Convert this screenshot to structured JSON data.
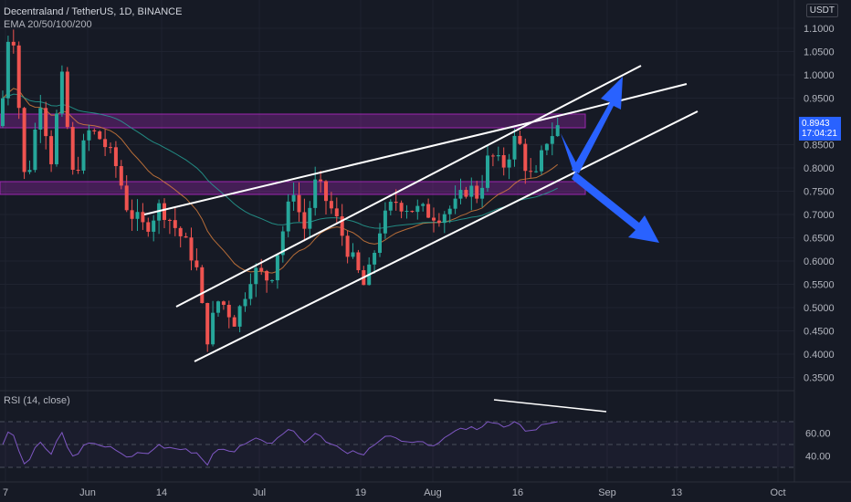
{
  "header": {
    "symbol_line": "Decentraland / TetherUS, 1D, BINANCE",
    "indicator_line": "EMA 20/50/100/200"
  },
  "currency_badge": "USDT",
  "current_price": {
    "value": "0.8943",
    "countdown": "17:04:21"
  },
  "rsi": {
    "label": "RSI (14, close)",
    "levels": [
      "60.00",
      "40.00"
    ]
  },
  "price_axis": [
    "1.1000",
    "1.0500",
    "1.0000",
    "0.9500",
    "0.8500",
    "0.8000",
    "0.7500",
    "0.7000",
    "0.6500",
    "0.6000",
    "0.5500",
    "0.5000",
    "0.4500",
    "0.4000",
    "0.3500"
  ],
  "time_axis": [
    "7",
    "Jun",
    "14",
    "Jul",
    "19",
    "Aug",
    "16",
    "Sep",
    "13",
    "Oct"
  ],
  "colors": {
    "up": "#26a69a",
    "down": "#ef5350",
    "zone": "#9c27b0",
    "arrow": "#2962ff",
    "line": "#ffffff",
    "rsi": "#7e57c2"
  }
}
